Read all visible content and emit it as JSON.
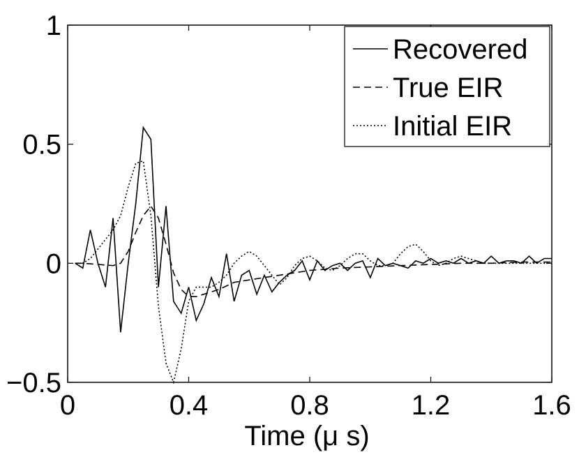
{
  "chart_data": {
    "type": "line",
    "xlabel": "Time (μ s)",
    "ylabel": "",
    "xlim": [
      0,
      1.6
    ],
    "ylim": [
      -0.5,
      1
    ],
    "xticks": [
      0,
      0.4,
      0.8,
      1.2,
      1.6
    ],
    "xtick_labels": [
      "0",
      "0.4",
      "0.8",
      "1.2",
      "1.6"
    ],
    "yticks": [
      -0.5,
      0,
      0.5,
      1
    ],
    "ytick_labels": [
      "−0.5",
      "0",
      "0.5",
      "1"
    ],
    "grid": false,
    "legend_position": "top-right",
    "series": [
      {
        "name": "Recovered",
        "style": "solid",
        "color": "#000000",
        "x": [
          0.025,
          0.05,
          0.075,
          0.1,
          0.125,
          0.15,
          0.175,
          0.2,
          0.225,
          0.25,
          0.275,
          0.3,
          0.325,
          0.35,
          0.375,
          0.4,
          0.425,
          0.45,
          0.475,
          0.5,
          0.525,
          0.55,
          0.575,
          0.6,
          0.625,
          0.65,
          0.675,
          0.7,
          0.725,
          0.75,
          0.775,
          0.8,
          0.825,
          0.85,
          0.875,
          0.9,
          0.925,
          0.95,
          0.975,
          1.0,
          1.025,
          1.05,
          1.075,
          1.1,
          1.125,
          1.15,
          1.175,
          1.2,
          1.225,
          1.25,
          1.275,
          1.3,
          1.325,
          1.35,
          1.375,
          1.4,
          1.425,
          1.45,
          1.475,
          1.5,
          1.525,
          1.55,
          1.575,
          1.6
        ],
        "y": [
          0,
          -0.02,
          0.14,
          0,
          -0.1,
          0.19,
          -0.29,
          0,
          0.25,
          0.57,
          0.52,
          -0.1,
          0.24,
          -0.16,
          -0.21,
          -0.1,
          -0.24,
          -0.17,
          -0.06,
          -0.14,
          0.04,
          -0.16,
          -0.05,
          -0.03,
          -0.13,
          -0.05,
          -0.12,
          -0.08,
          -0.05,
          -0.03,
          0.01,
          -0.07,
          0.01,
          -0.03,
          -0.01,
          0.0,
          -0.03,
          0.0,
          0.01,
          -0.06,
          0.02,
          -0.01,
          0.0,
          -0.01,
          -0.02,
          0.01,
          0.0,
          0.02,
          0.0,
          0.01,
          0.0,
          0.02,
          0.0,
          0.01,
          0.0,
          0.03,
          0.0,
          0.01,
          0.01,
          0.0,
          0.03,
          0.0,
          0.02,
          0.02
        ]
      },
      {
        "name": "True EIR",
        "style": "dashed",
        "color": "#000000",
        "x": [
          0.025,
          0.05,
          0.1,
          0.15,
          0.175,
          0.2,
          0.225,
          0.25,
          0.275,
          0.3,
          0.325,
          0.35,
          0.375,
          0.4,
          0.425,
          0.45,
          0.5,
          0.55,
          0.6,
          0.65,
          0.7,
          0.75,
          0.8,
          0.9,
          1.0,
          1.1,
          1.2,
          1.3,
          1.4,
          1.5,
          1.6
        ],
        "y": [
          0,
          0,
          -0.005,
          -0.01,
          0.0,
          0.05,
          0.13,
          0.2,
          0.24,
          0.19,
          0.08,
          -0.04,
          -0.11,
          -0.14,
          -0.14,
          -0.13,
          -0.11,
          -0.08,
          -0.07,
          -0.06,
          -0.05,
          -0.04,
          -0.03,
          -0.02,
          -0.015,
          -0.01,
          -0.005,
          0.0,
          0.0,
          0.005,
          0.005
        ]
      },
      {
        "name": "Initial EIR",
        "style": "dotted",
        "color": "#000000",
        "x": [
          0.025,
          0.05,
          0.075,
          0.1,
          0.125,
          0.15,
          0.175,
          0.2,
          0.225,
          0.25,
          0.275,
          0.3,
          0.325,
          0.35,
          0.375,
          0.4,
          0.425,
          0.45,
          0.475,
          0.5,
          0.525,
          0.55,
          0.575,
          0.6,
          0.625,
          0.65,
          0.675,
          0.7,
          0.725,
          0.75,
          0.775,
          0.8,
          0.825,
          0.85,
          0.875,
          0.9,
          0.925,
          0.95,
          0.975,
          1.0,
          1.025,
          1.05,
          1.075,
          1.1,
          1.125,
          1.15,
          1.175,
          1.2,
          1.225,
          1.25,
          1.275,
          1.3,
          1.325,
          1.35,
          1.375,
          1.4,
          1.45,
          1.5,
          1.55,
          1.6
        ],
        "y": [
          0,
          0,
          0.02,
          0.06,
          0.1,
          0.14,
          0.2,
          0.32,
          0.42,
          0.43,
          0.2,
          -0.18,
          -0.42,
          -0.5,
          -0.36,
          -0.16,
          -0.1,
          -0.1,
          -0.1,
          -0.08,
          -0.05,
          0.0,
          0.03,
          0.05,
          0.03,
          -0.01,
          -0.05,
          -0.09,
          -0.06,
          -0.01,
          0.02,
          0.03,
          0.01,
          -0.02,
          -0.03,
          -0.01,
          0.02,
          0.04,
          0.04,
          0.01,
          -0.01,
          -0.01,
          0.0,
          0.04,
          0.07,
          0.08,
          0.05,
          0.01,
          -0.01,
          0.0,
          0.02,
          0.03,
          0.02,
          0.01,
          0.0,
          0.0,
          0.0,
          0.0,
          0.0,
          0.0
        ]
      }
    ]
  }
}
